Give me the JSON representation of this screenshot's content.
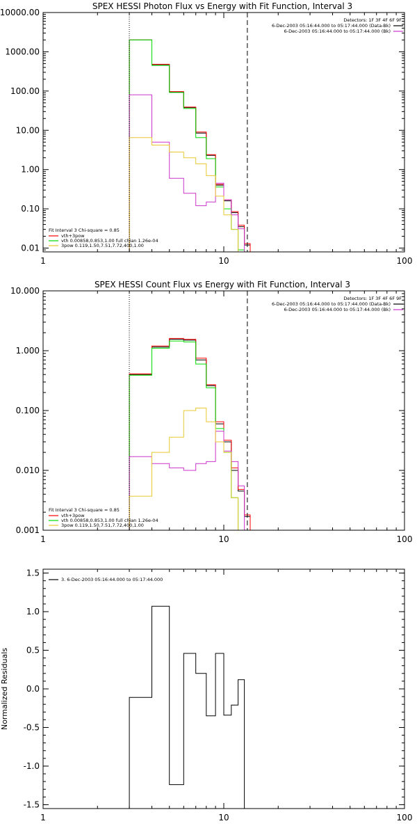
{
  "chart_data": [
    {
      "type": "line",
      "title": "SPEX HESSI Photon Flux vs Energy with Fit Function, Interval 3",
      "xscale": "log",
      "yscale": "log",
      "xlim": [
        1,
        100
      ],
      "ylim": [
        0.008,
        10000
      ],
      "xticks": [
        {
          "v": 1,
          "label": "1"
        },
        {
          "v": 10,
          "label": "10"
        },
        {
          "v": 100,
          "label": "100"
        }
      ],
      "yticks": [
        {
          "v": 0.01,
          "label": "0.01"
        },
        {
          "v": 0.1,
          "label": "0.10"
        },
        {
          "v": 1,
          "label": "1.00"
        },
        {
          "v": 10,
          "label": "10.00"
        },
        {
          "v": 100,
          "label": "100.00"
        },
        {
          "v": 1000,
          "label": "1000.00"
        },
        {
          "v": 10000,
          "label": "10000.00"
        }
      ],
      "vlines": [
        {
          "x": 3,
          "style": "dotted"
        },
        {
          "x": 13.5,
          "style": "dashed"
        }
      ],
      "info_lines": [
        "Detectors: 1F 3F 4F 6F 9F",
        "6-Dec-2003 05:16:44.000 to 05:17:44.000 (Data-Bk)",
        "6-Dec-2003 05:16:44.000 to 05:17:44.000 (Bk)"
      ],
      "info_colors": [
        "",
        "#000000",
        "#cc33cc"
      ],
      "legend": {
        "header": "Fit Interval 3   Chi-square = 0.85",
        "items": [
          {
            "label": "vth+3pow",
            "color": "#ff0000"
          },
          {
            "label": "vth 0.00858,0.853,1.00   full chian 1.26e-04",
            "color": "#00dd00"
          },
          {
            "label": "3pow 0.119,1.50,7.51,7.72,400,1.00",
            "color": "#e8c830"
          }
        ]
      },
      "edges": [
        3,
        4,
        5,
        6,
        7,
        8,
        9,
        10,
        11,
        12,
        13,
        14,
        15
      ],
      "series": [
        {
          "color": "#000000",
          "values": [
            2000,
            470,
            95,
            38,
            8.5,
            2.3,
            0.4,
            0.16,
            0.08,
            0.035,
            0.012,
            null
          ]
        },
        {
          "color": "#ff0000",
          "values": [
            2000,
            480,
            97,
            39,
            9.0,
            2.4,
            0.42,
            0.17,
            0.085,
            0.038,
            0.013,
            null
          ]
        },
        {
          "color": "#00dd00",
          "values": [
            2000,
            450,
            92,
            36,
            6.5,
            1.9,
            0.36,
            0.1,
            0.03,
            0.009,
            null,
            null
          ]
        },
        {
          "color": "#cc33cc",
          "values": [
            80,
            5.0,
            0.6,
            0.25,
            0.12,
            0.15,
            0.45,
            0.17,
            0.07,
            0.031,
            null,
            null
          ]
        },
        {
          "color": "#e8c830",
          "values": [
            6.5,
            4.2,
            2.8,
            2.0,
            1.4,
            0.7,
            0.21,
            0.07,
            0.03,
            0.008,
            null,
            null
          ]
        }
      ]
    },
    {
      "type": "line",
      "title": "SPEX HESSI Count Flux vs Energy with Fit Function, Interval 3",
      "xscale": "log",
      "yscale": "log",
      "xlim": [
        1,
        100
      ],
      "ylim": [
        0.001,
        10
      ],
      "xticks": [
        {
          "v": 1,
          "label": "1"
        },
        {
          "v": 10,
          "label": "10"
        },
        {
          "v": 100,
          "label": "100"
        }
      ],
      "yticks": [
        {
          "v": 0.001,
          "label": "0.001"
        },
        {
          "v": 0.01,
          "label": "0.010"
        },
        {
          "v": 0.1,
          "label": "0.100"
        },
        {
          "v": 1,
          "label": "1.000"
        },
        {
          "v": 10,
          "label": "10.000"
        }
      ],
      "vlines": [
        {
          "x": 3,
          "style": "dotted"
        },
        {
          "x": 13.5,
          "style": "dashed"
        }
      ],
      "info_lines": [
        "Detectors: 1F 3F 4F 6F 9F",
        "6-Dec-2003 05:16:44.000 to 05:17:44.000 (Data-Bk)",
        "6-Dec-2003 05:16:44.000 to 05:17:44.000 (Bk)"
      ],
      "info_colors": [
        "",
        "#000000",
        "#cc33cc"
      ],
      "legend": {
        "header": "Fit Interval 3   Chi-square = 0.85",
        "items": [
          {
            "label": "vth+3pow",
            "color": "#ff0000"
          },
          {
            "label": "vth 0.00858,0.853,1.00   full chian 1.26e-04",
            "color": "#00dd00"
          },
          {
            "label": "3pow 0.119,1.50,7.51,7.72,400,1.00",
            "color": "#e8c830"
          }
        ]
      },
      "edges": [
        3,
        4,
        5,
        6,
        7,
        8,
        9,
        10,
        11,
        12,
        13,
        14,
        15
      ],
      "series": [
        {
          "color": "#000000",
          "values": [
            0.4,
            1.15,
            1.55,
            1.5,
            0.7,
            0.26,
            0.06,
            0.03,
            0.01,
            0.0045,
            0.0017,
            null
          ]
        },
        {
          "color": "#ff0000",
          "values": [
            0.41,
            1.2,
            1.6,
            1.55,
            0.75,
            0.27,
            0.065,
            0.032,
            0.011,
            0.0048,
            0.0018,
            null
          ]
        },
        {
          "color": "#00dd00",
          "values": [
            0.39,
            1.1,
            1.45,
            1.4,
            0.6,
            0.24,
            0.05,
            0.02,
            0.0035,
            0.001,
            null,
            null
          ]
        },
        {
          "color": "#cc33cc",
          "values": [
            0.017,
            0.013,
            0.011,
            0.01,
            0.013,
            0.014,
            0.045,
            0.021,
            0.014,
            0.0055,
            null,
            null
          ]
        },
        {
          "color": "#e8c830",
          "values": [
            0.0037,
            0.02,
            0.036,
            0.1,
            0.11,
            0.065,
            0.03,
            0.02,
            0.0035,
            0.001,
            null,
            null
          ]
        }
      ]
    },
    {
      "type": "line",
      "title": "",
      "xscale": "log",
      "yscale": "linear",
      "xlim": [
        1,
        100
      ],
      "ylim": [
        -1.55,
        1.55
      ],
      "ylabel": "Normalized Residuals",
      "xticks": [
        {
          "v": 1,
          "label": "1"
        },
        {
          "v": 10,
          "label": "10"
        },
        {
          "v": 100,
          "label": "100"
        }
      ],
      "yticks": [
        {
          "v": -1.5,
          "label": "-1.5"
        },
        {
          "v": -1.0,
          "label": "-1.0"
        },
        {
          "v": -0.5,
          "label": "-0.5"
        },
        {
          "v": 0.0,
          "label": "0.0"
        },
        {
          "v": 0.5,
          "label": "0.5"
        },
        {
          "v": 1.0,
          "label": "1.0"
        },
        {
          "v": 1.5,
          "label": "1.5"
        }
      ],
      "legend": {
        "header": "",
        "items": [
          {
            "label": "3.  6-Dec-2003 05:16:44.000 to 05:17:44.000",
            "color": "#000000"
          }
        ]
      },
      "edges": [
        3,
        4,
        5,
        6,
        7,
        8,
        9,
        10,
        11,
        12,
        13,
        14
      ],
      "series": [
        {
          "color": "#000000",
          "values": [
            -0.11,
            1.07,
            -1.24,
            0.46,
            0.2,
            -0.35,
            0.46,
            -0.34,
            -0.21,
            0.12,
            null
          ],
          "open_start": -1.55,
          "open_end": -1.55
        }
      ]
    }
  ]
}
